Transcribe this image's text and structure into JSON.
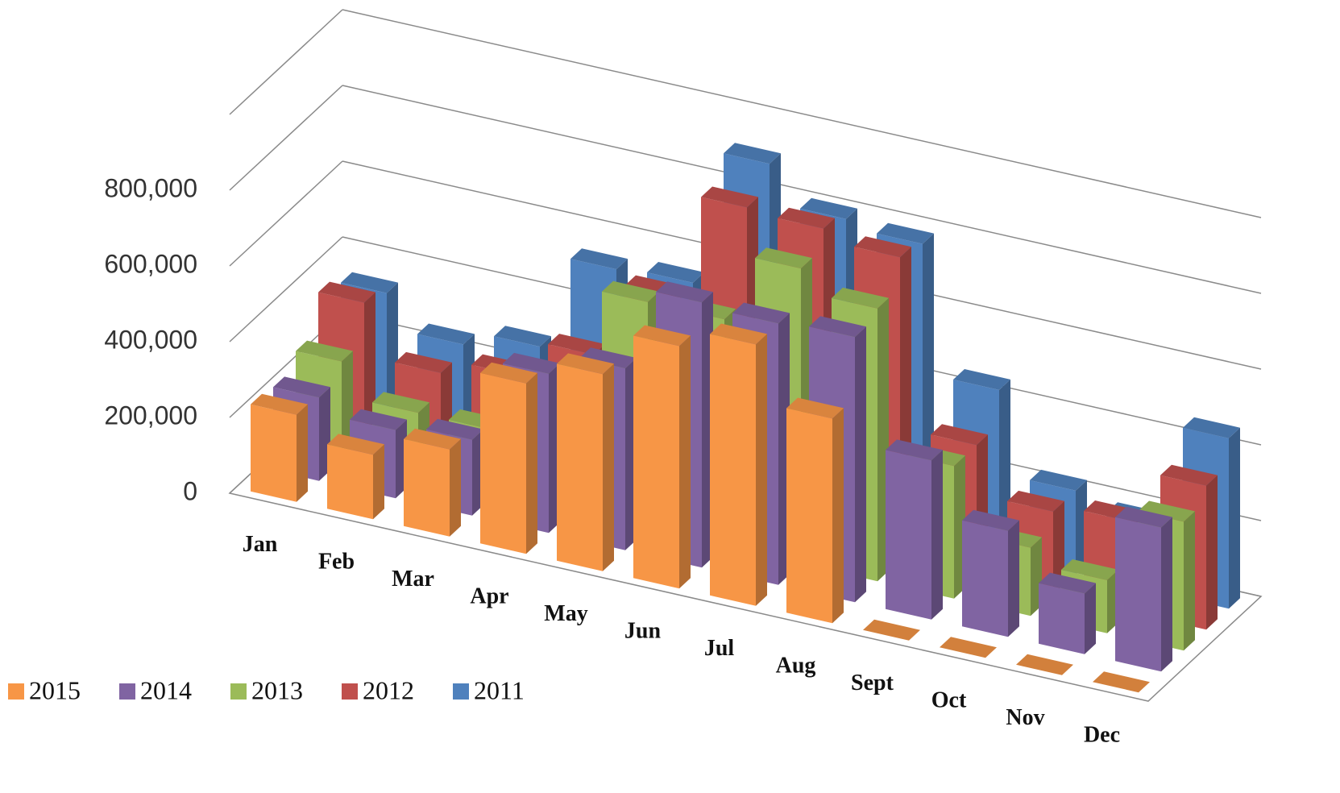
{
  "chart_data": {
    "type": "bar3d",
    "categories": [
      "Jan",
      "Feb",
      "Mar",
      "Apr",
      "May",
      "Jun",
      "Jul",
      "Aug",
      "Sept",
      "Oct",
      "Nov",
      "Dec"
    ],
    "series": [
      {
        "name": "2015",
        "color": "#f79646",
        "values": [
          230000,
          170000,
          230000,
          450000,
          520000,
          640000,
          690000,
          540000,
          0,
          0,
          0,
          0
        ]
      },
      {
        "name": "2014",
        "color": "#8064a2",
        "values": [
          220000,
          180000,
          200000,
          420000,
          480000,
          700000,
          690000,
          700000,
          420000,
          280000,
          160000,
          380000
        ]
      },
      {
        "name": "2013",
        "color": "#9bbb59",
        "values": [
          260000,
          170000,
          170000,
          350000,
          600000,
          600000,
          780000,
          720000,
          350000,
          180000,
          140000,
          340000
        ]
      },
      {
        "name": "2012",
        "color": "#c0504d",
        "values": [
          360000,
          220000,
          260000,
          360000,
          560000,
          840000,
          830000,
          800000,
          350000,
          220000,
          240000,
          380000
        ]
      },
      {
        "name": "2011",
        "color": "#4f81bd",
        "values": [
          330000,
          240000,
          280000,
          530000,
          540000,
          900000,
          800000,
          780000,
          440000,
          220000,
          180000,
          450000
        ]
      }
    ],
    "ylim": [
      0,
      1000000
    ],
    "yticks": [
      {
        "value": 0,
        "label": "0"
      },
      {
        "value": 200000,
        "label": "200,000"
      },
      {
        "value": 400000,
        "label": "400,000"
      },
      {
        "value": 600000,
        "label": "600,000"
      },
      {
        "value": 800000,
        "label": "800,000"
      }
    ],
    "grid": true,
    "legend": "bottom-left"
  }
}
